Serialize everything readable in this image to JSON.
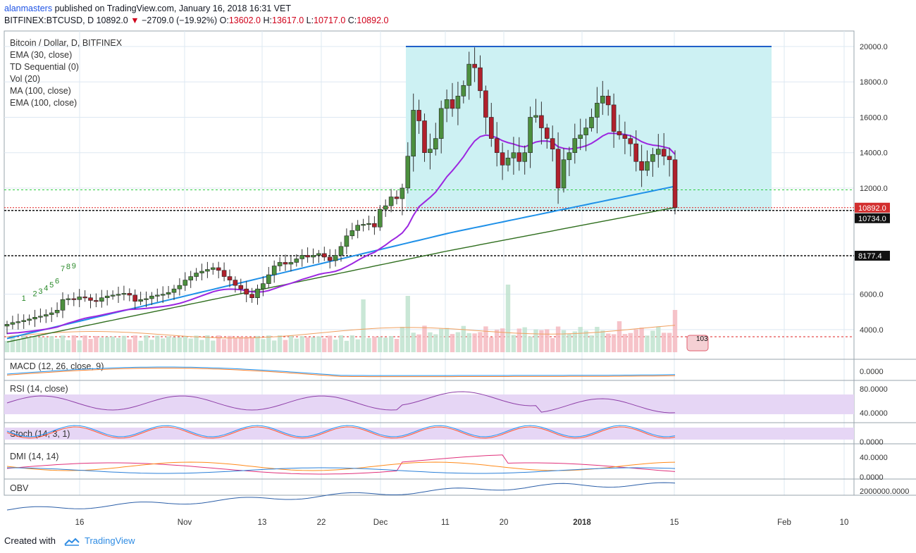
{
  "header": {
    "user": "alanmasters",
    "published": "published on TradingView.com, January 16, 2018 16:31 VET",
    "symbol": "BITFINEX:BTCUSD, D",
    "last": "10892.0",
    "change": "−2709.0 (−19.92%)",
    "o_label": "O:",
    "o": "13602.0",
    "h_label": "H:",
    "h": "13617.0",
    "l_label": "L:",
    "l": "10717.0",
    "c_label": "C:",
    "c": "10892.0"
  },
  "legend": {
    "symbol": "Bitcoin / Dollar, D, BITFINEX",
    "ema30": "EMA (30, close)",
    "td": "TD Sequential (0)",
    "vol": "Vol (20)",
    "ma100": "MA (100, close)",
    "ema100": "EMA (100, close)"
  },
  "price_labels": {
    "last": "10892.0",
    "level_low": "10734.0",
    "level_black": "8177.4",
    "badge": "103"
  },
  "pane_labels": {
    "macd": "MACD (12, 26, close, 9)",
    "rsi": "RSI (14, close)",
    "stoch": "Stoch (14, 3, 1)",
    "dmi": "DMI (14, 14)",
    "obv": "OBV"
  },
  "footer": {
    "created": "Created with",
    "brand": "TradingView"
  },
  "colors": {
    "up": "#4c8f3e",
    "down": "#b0202c",
    "ema30": "#9c27e0",
    "ma100": "#2f6e1e",
    "ema100": "#1e90e8",
    "box": "#cdf1f3",
    "rsi_bg": "#e6d6f5",
    "grid": "#dde8f2"
  },
  "chart_data": {
    "type": "candlestick",
    "title": "Bitcoin / Dollar, D, BITFINEX",
    "x_ticks": [
      "16",
      "Nov",
      "13",
      "22",
      "Dec",
      "11",
      "20",
      "2018",
      "15",
      "Feb",
      "10"
    ],
    "y_ticks": [
      "4000.0",
      "6000.0",
      "12000.0",
      "14000.0",
      "16000.0",
      "18000.0",
      "20000.0"
    ],
    "ylim": [
      2800,
      21000
    ],
    "close": [
      4300,
      4400,
      4450,
      4520,
      4600,
      4700,
      4760,
      4850,
      4950,
      5100,
      5700,
      5750,
      5700,
      5850,
      5800,
      5650,
      5600,
      5800,
      5900,
      5950,
      6000,
      6050,
      5950,
      5600,
      5700,
      5750,
      5900,
      5950,
      6000,
      6100,
      6300,
      6500,
      6800,
      7000,
      7200,
      7300,
      7400,
      7500,
      7350,
      7000,
      6800,
      6500,
      6300,
      6000,
      5800,
      6300,
      6600,
      7100,
      7600,
      7800,
      7700,
      7800,
      8000,
      8200,
      8100,
      8200,
      8300,
      8100,
      7900,
      8200,
      8700,
      9300,
      9600,
      9900,
      9950,
      10000,
      9800,
      10800,
      11000,
      11500,
      11400,
      12000,
      13800,
      16400,
      15800,
      14000,
      14200,
      14800,
      16500,
      17000,
      16500,
      17200,
      17800,
      19000,
      18800,
      17500,
      16000,
      14800,
      14000,
      13300,
      13700,
      14000,
      13500,
      14000,
      16000,
      16100,
      15400,
      14800,
      14200,
      12000,
      13600,
      14000,
      14800,
      15000,
      15400,
      16000,
      16800,
      17200,
      16700,
      15200,
      15000,
      14800,
      14500,
      13500,
      13000,
      13500,
      13900,
      14200,
      13800,
      13600,
      10892
    ],
    "series": [
      {
        "name": "EMA (30, close)"
      },
      {
        "name": "MA (100, close)"
      },
      {
        "name": "EMA (100, close)"
      }
    ],
    "horizontal_levels": [
      20000,
      11900,
      10892,
      10734,
      8177.4,
      3550
    ],
    "panes": [
      "MACD (12, 26, close, 9)",
      "RSI (14, close)",
      "Stoch (14, 3, 1)",
      "DMI (14, 14)",
      "OBV"
    ],
    "pane_ticks": {
      "macd": [
        "0.0000"
      ],
      "rsi": [
        "80.0000",
        "40.0000"
      ],
      "stoch": [
        "0.0000"
      ],
      "dmi": [
        "40.0000",
        "0.0000"
      ],
      "obv": [
        "2000000.0000"
      ]
    }
  }
}
